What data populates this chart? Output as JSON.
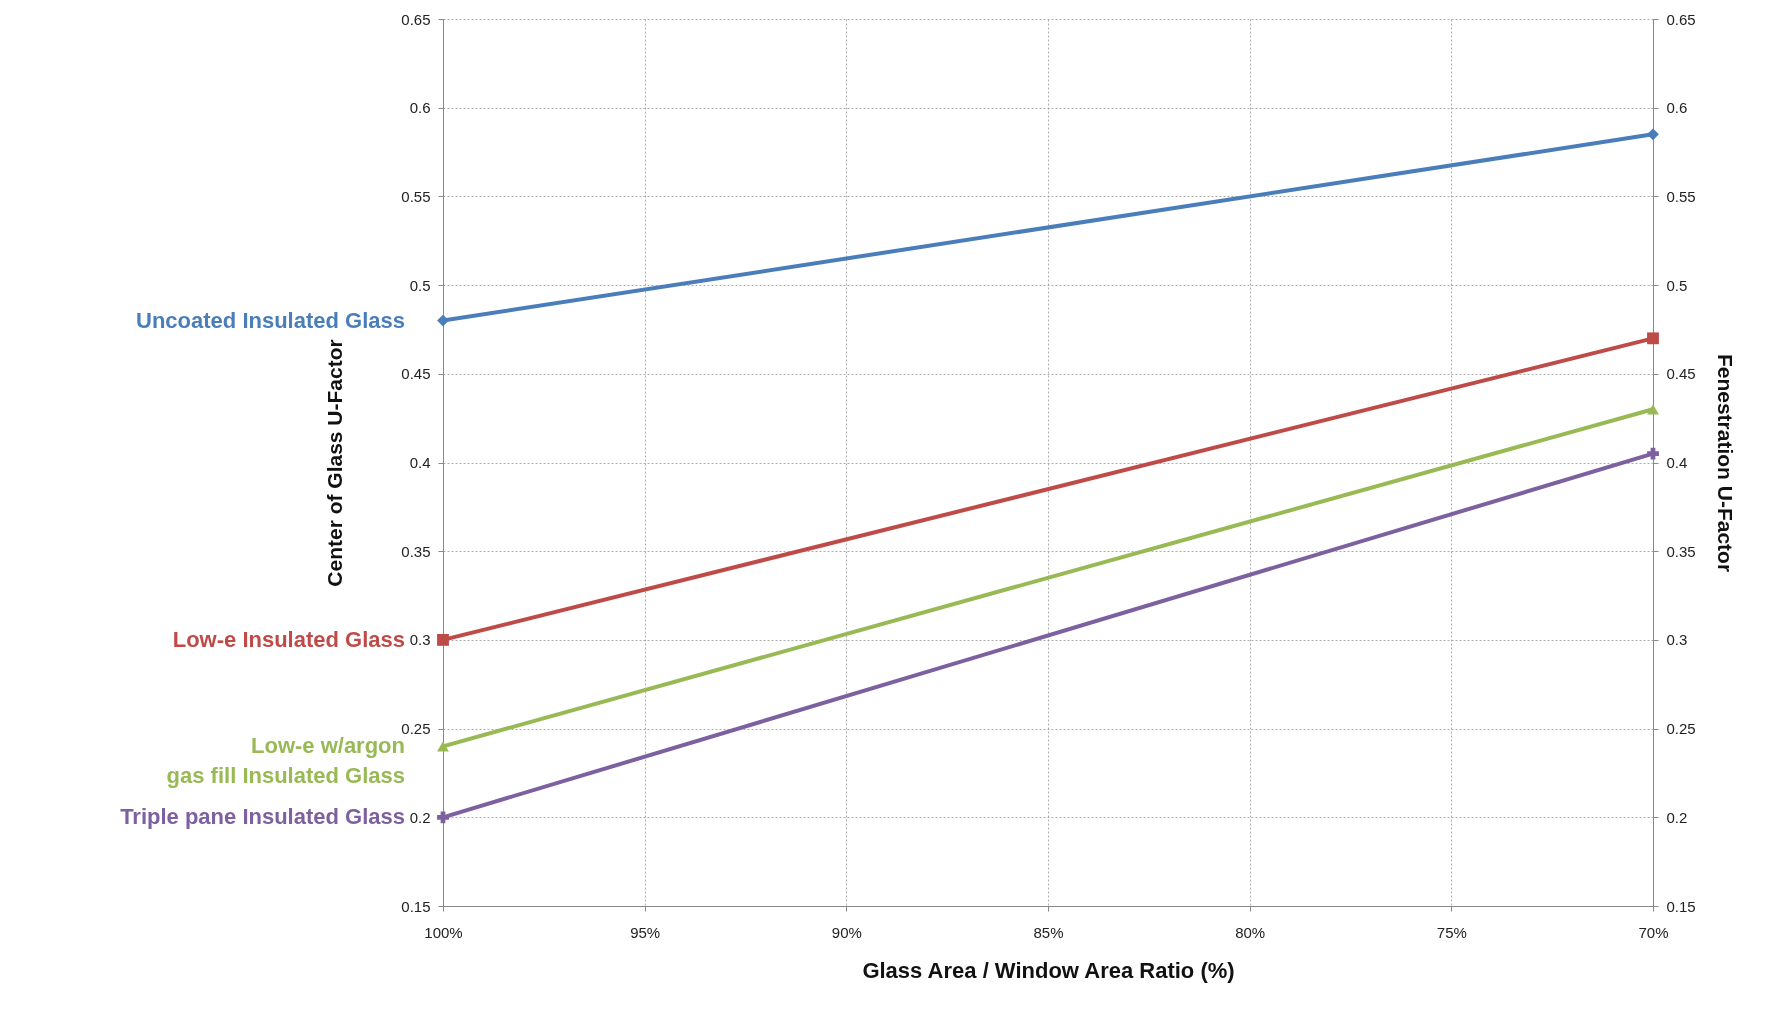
{
  "chart_data": {
    "type": "line",
    "xlabel": "Glass Area / Window Area Ratio  (%)",
    "ylabel": "Center of Glass U-Factor",
    "y2label": "Fenestration U-Factor",
    "x": [
      100,
      70
    ],
    "xlim": [
      100,
      70
    ],
    "xticks": [
      {
        "value": 100,
        "label": "100%"
      },
      {
        "value": 95,
        "label": "95%"
      },
      {
        "value": 90,
        "label": "90%"
      },
      {
        "value": 85,
        "label": "85%"
      },
      {
        "value": 80,
        "label": "80%"
      },
      {
        "value": 75,
        "label": "75%"
      },
      {
        "value": 70,
        "label": "70%"
      }
    ],
    "ylim": [
      0.15,
      0.65
    ],
    "yticks": [
      0.15,
      0.2,
      0.25,
      0.3,
      0.35,
      0.4,
      0.45,
      0.5,
      0.55,
      0.6,
      0.65
    ],
    "y2lim": [
      0.15,
      0.65
    ],
    "y2ticks": [
      0.15,
      0.2,
      0.25,
      0.3,
      0.35,
      0.4,
      0.45,
      0.5,
      0.55,
      0.6,
      0.65
    ],
    "grid": true,
    "line_style": "solid",
    "series": [
      {
        "name": "Uncoated Insulated Glass",
        "color": "#4a7ebb",
        "marker": "diamond",
        "values": [
          0.48,
          0.585
        ]
      },
      {
        "name": "Low-e Insulated Glass",
        "color": "#be4b48",
        "marker": "square",
        "values": [
          0.3,
          0.47
        ]
      },
      {
        "name": "Low-e w/argon\ngas fill Insulated Glass",
        "color": "#98b954",
        "marker": "triangle",
        "values": [
          0.24,
          0.43
        ]
      },
      {
        "name": "Triple pane Insulated Glass",
        "color": "#7d60a0",
        "marker": "cross",
        "values": [
          0.2,
          0.405
        ]
      }
    ]
  }
}
